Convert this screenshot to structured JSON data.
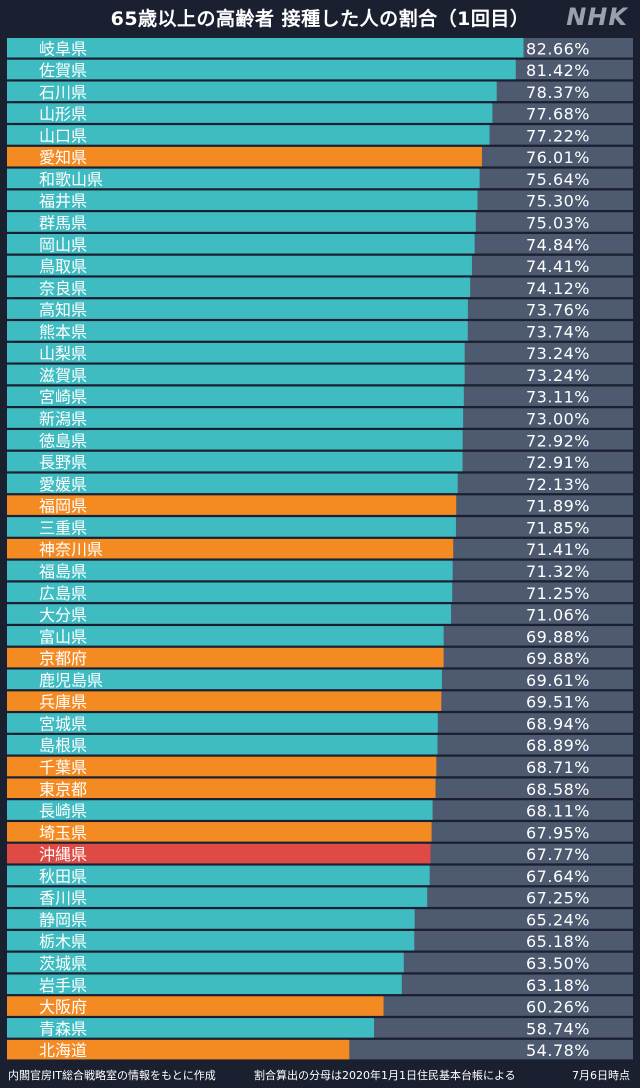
{
  "header": {
    "title": "65歳以上の高齢者 接種した人の割合（1回目）",
    "logo": "NHK"
  },
  "footer": {
    "source": "内閣官房IT総合戦略室の情報をもとに作成",
    "note": "割合算出の分母は2020年1月1日住民基本台帳による",
    "date": "7月6日時点"
  },
  "colors": {
    "background": "#1b2030",
    "track": "#4d5a70",
    "default": "#3ebcc2",
    "highlight": "#f38a22",
    "okinawa": "#e04a45"
  },
  "chart_data": {
    "type": "bar",
    "orientation": "horizontal",
    "title": "65歳以上の高齢者 接種した人の割合（1回目）",
    "value_suffix": "%",
    "xlim": [
      0,
      100
    ],
    "categories": [
      "岐阜県",
      "佐賀県",
      "石川県",
      "山形県",
      "山口県",
      "愛知県",
      "和歌山県",
      "福井県",
      "群馬県",
      "岡山県",
      "鳥取県",
      "奈良県",
      "高知県",
      "熊本県",
      "山梨県",
      "滋賀県",
      "宮崎県",
      "新潟県",
      "徳島県",
      "長野県",
      "愛媛県",
      "福岡県",
      "三重県",
      "神奈川県",
      "福島県",
      "広島県",
      "大分県",
      "富山県",
      "京都府",
      "鹿児島県",
      "兵庫県",
      "宮城県",
      "島根県",
      "千葉県",
      "東京都",
      "長崎県",
      "埼玉県",
      "沖縄県",
      "秋田県",
      "香川県",
      "静岡県",
      "栃木県",
      "茨城県",
      "岩手県",
      "大阪府",
      "青森県",
      "北海道"
    ],
    "values": [
      82.66,
      81.42,
      78.37,
      77.68,
      77.22,
      76.01,
      75.64,
      75.3,
      75.03,
      74.84,
      74.41,
      74.12,
      73.76,
      73.74,
      73.24,
      73.24,
      73.11,
      73.0,
      72.92,
      72.91,
      72.13,
      71.89,
      71.85,
      71.41,
      71.32,
      71.25,
      71.06,
      69.88,
      69.88,
      69.61,
      69.51,
      68.94,
      68.89,
      68.71,
      68.58,
      68.11,
      67.95,
      67.77,
      67.64,
      67.25,
      65.24,
      65.18,
      63.5,
      63.18,
      60.26,
      58.74,
      54.78
    ],
    "value_labels": [
      "82.66",
      "81.42",
      "78.37",
      "77.68",
      "77.22",
      "76.01",
      "75.64",
      "75.30",
      "75.03",
      "74.84",
      "74.41",
      "74.12",
      "73.76",
      "73.74",
      "73.24",
      "73.24",
      "73.11",
      "73.00",
      "72.92",
      "72.91",
      "72.13",
      "71.89",
      "71.85",
      "71.41",
      "71.32",
      "71.25",
      "71.06",
      "69.88",
      "69.88",
      "69.61",
      "69.51",
      "68.94",
      "68.89",
      "68.71",
      "68.58",
      "68.11",
      "67.95",
      "67.77",
      "67.64",
      "67.25",
      "65.24",
      "65.18",
      "63.50",
      "63.18",
      "60.26",
      "58.74",
      "54.78"
    ],
    "highlight": [
      "default",
      "default",
      "default",
      "default",
      "default",
      "highlight",
      "default",
      "default",
      "default",
      "default",
      "default",
      "default",
      "default",
      "default",
      "default",
      "default",
      "default",
      "default",
      "default",
      "default",
      "default",
      "highlight",
      "default",
      "highlight",
      "default",
      "default",
      "default",
      "default",
      "highlight",
      "default",
      "highlight",
      "default",
      "default",
      "highlight",
      "highlight",
      "default",
      "highlight",
      "okinawa",
      "default",
      "default",
      "default",
      "default",
      "default",
      "default",
      "highlight",
      "default",
      "highlight"
    ]
  }
}
